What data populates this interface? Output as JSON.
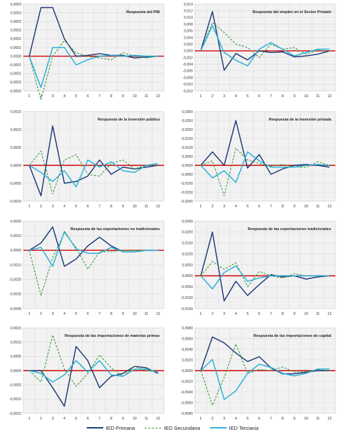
{
  "colors": {
    "primaria": "#1f3a7a",
    "secundaria": "#3a9a3a",
    "terciaria": "#2ab0d8",
    "zero_line": "#d00000",
    "plot_bg": "#f2f2f2",
    "grid": "#d8d8d8"
  },
  "legend": {
    "primaria": "IED Primaria",
    "secundaria": "IED Secundaria",
    "terciaria": "IED Terciaria"
  },
  "chart_data": [
    {
      "type": "line",
      "title": "Respuesta del PIB",
      "x": [
        1,
        2,
        3,
        4,
        5,
        6,
        7,
        8,
        9,
        10,
        11,
        12
      ],
      "ylim": [
        -0.0002,
        0.0003
      ],
      "yticks": [
        -0.0002,
        -0.00015,
        -0.0001,
        -5e-05,
        0,
        5e-05,
        0.0001,
        0.00015,
        0.0002,
        0.00025,
        0.0003
      ],
      "ytick_labels": [
        "-0,0002",
        "-0,0002",
        "-0,0001",
        "-0,0001",
        "0,0000",
        "0,0001",
        "0,0001",
        "0,0002",
        "0,0002",
        "0,0003",
        "0,0003"
      ],
      "series": [
        {
          "name": "IED Primaria",
          "values": [
            0,
            0.00028,
            0.00028,
            0.0001,
            0,
            5e-06,
            1.5e-05,
            5e-06,
            5e-06,
            -1e-05,
            -5e-06,
            0
          ]
        },
        {
          "name": "IED Secundaria",
          "values": [
            0,
            -0.00025,
            0,
            9e-05,
            2e-05,
            0,
            -1e-05,
            -2e-05,
            2e-05,
            0,
            -1e-05,
            0
          ]
        },
        {
          "name": "IED Terciaria",
          "values": [
            0,
            -0.00018,
            5e-05,
            5e-05,
            -5e-05,
            -2e-05,
            0,
            5e-06,
            0,
            5e-06,
            0,
            0
          ]
        }
      ]
    },
    {
      "type": "line",
      "title": "Respuesta del empleo en el Sector Privado",
      "x": [
        1,
        2,
        3,
        4,
        5,
        6,
        7,
        8,
        9,
        10,
        11,
        12
      ],
      "ylim": [
        -0.012,
        0.014
      ],
      "yticks": [
        -0.012,
        -0.01,
        -0.008,
        -0.006,
        -0.004,
        -0.002,
        0,
        0.002,
        0.004,
        0.006,
        0.008,
        0.01,
        0.012,
        0.014
      ],
      "ytick_labels": [
        "-0,012",
        "-0,010",
        "-0,008",
        "-0,006",
        "-0,004",
        "-0,002",
        "0,000",
        "0,002",
        "0,004",
        "0,006",
        "0,008",
        "0,010",
        "0,012",
        "0,014"
      ],
      "series": [
        {
          "name": "IED Primaria",
          "values": [
            0,
            0.0118,
            -0.0058,
            -0.0008,
            -0.0027,
            0,
            -0.0005,
            -0.0003,
            -0.0018,
            -0.0015,
            -0.001,
            0
          ]
        },
        {
          "name": "IED Secundaria",
          "values": [
            0,
            0.0085,
            0.0055,
            0.002,
            0.001,
            -0.002,
            0.002,
            0.0005,
            0.001,
            -0.001,
            0.0002,
            0
          ]
        },
        {
          "name": "IED Terciaria",
          "values": [
            0,
            0.0076,
            -0.0005,
            -0.0028,
            -0.0045,
            0.0005,
            0.0025,
            0.0005,
            -0.0015,
            -0.0005,
            0.0005,
            0.0005
          ]
        }
      ]
    },
    {
      "type": "line",
      "title": "Respuesta de la inversión pública",
      "x": [
        1,
        2,
        3,
        4,
        5,
        6,
        7,
        8,
        9,
        10,
        11,
        12
      ],
      "ylim": [
        -0.001,
        0.0015
      ],
      "yticks": [
        -0.001,
        -0.0005,
        0,
        0.0005,
        0.001,
        0.0015
      ],
      "ytick_labels": [
        "-0,0010",
        "-0,0005",
        "0,0000",
        "0,0005",
        "0,0010",
        "0,0015"
      ],
      "series": [
        {
          "name": "IED Primaria",
          "values": [
            0,
            -0.00085,
            0.0011,
            -0.0005,
            -0.00045,
            -0.0003,
            0.00015,
            -0.00025,
            -5e-05,
            -0.0001,
            -5e-05,
            0
          ]
        },
        {
          "name": "IED Secundaria",
          "values": [
            0,
            0.0004,
            -0.0008,
            0.00015,
            0.0003,
            -0.00025,
            -0.0003,
            5e-05,
            0.00015,
            -0.0001,
            0,
            0
          ]
        },
        {
          "name": "IED Terciaria",
          "values": [
            0,
            -0.0002,
            -0.00045,
            -0.00015,
            -0.0006,
            0.00015,
            -5e-05,
            0.0001,
            -0.00015,
            -0.0002,
            0,
            5e-05
          ]
        }
      ]
    },
    {
      "type": "line",
      "title": "Respuesta de la inversión privada",
      "x": [
        1,
        2,
        3,
        4,
        5,
        6,
        7,
        8,
        9,
        10,
        11,
        12
      ],
      "ylim": [
        -0.02,
        0.03
      ],
      "yticks": [
        -0.02,
        -0.015,
        -0.01,
        -0.005,
        0,
        0.005,
        0.01,
        0.015,
        0.02,
        0.025,
        0.03
      ],
      "ytick_labels": [
        "-0,0200",
        "-0,0150",
        "-0,0100",
        "-0,0050",
        "0,0000",
        "0,0050",
        "0,0100",
        "0,0150",
        "0,0200",
        "0,0250",
        "0,0300"
      ],
      "series": [
        {
          "name": "IED Primaria",
          "values": [
            0,
            0.0075,
            0,
            0.025,
            -0.0015,
            0.006,
            -0.005,
            -0.002,
            0,
            0.0005,
            0,
            -0.001
          ]
        },
        {
          "name": "IED Secundaria",
          "values": [
            0,
            0.0025,
            -0.017,
            0.0095,
            0.003,
            0.001,
            -0.0005,
            0.0005,
            -0.001,
            -0.001,
            0.002,
            0
          ]
        },
        {
          "name": "IED Terciaria",
          "values": [
            0,
            -0.007,
            -0.003,
            -0.0095,
            0.0075,
            0.0025,
            -0.001,
            -0.001,
            -0.001,
            0,
            0.0005,
            0
          ]
        }
      ]
    },
    {
      "type": "line",
      "title": "Respuesta de las exportaciones no tradicionales",
      "x": [
        1,
        2,
        3,
        4,
        5,
        6,
        7,
        8,
        9,
        10,
        11,
        12
      ],
      "ylim": [
        -0.004,
        0.002
      ],
      "yticks": [
        -0.004,
        -0.003,
        -0.002,
        -0.001,
        0,
        0.001,
        0.002
      ],
      "ytick_labels": [
        "-0,0040",
        "-0,0030",
        "-0,0020",
        "-0,0010",
        "0,0000",
        "0,0010",
        "0,0020"
      ],
      "series": [
        {
          "name": "IED Primaria",
          "values": [
            0,
            0.0005,
            0.0016,
            -0.0011,
            -0.0006,
            0.0003,
            0.0009,
            0.0003,
            -0.0001,
            -0.0001,
            0,
            0
          ]
        },
        {
          "name": "IED Secundaria",
          "values": [
            0,
            -0.0031,
            -0.0005,
            0.0012,
            0.0002,
            -0.0013,
            -0.0001,
            -0.0001,
            0,
            0,
            0,
            0
          ]
        },
        {
          "name": "IED Terciaria",
          "values": [
            0,
            0.0002,
            -0.0011,
            0.0013,
            0.0001,
            -0.0002,
            -0.0002,
            0.0002,
            -0.0001,
            -0.0001,
            0,
            0
          ]
        }
      ]
    },
    {
      "type": "line",
      "title": "Respuesta de las exportaciones tradicionales",
      "x": [
        1,
        2,
        3,
        4,
        5,
        6,
        7,
        8,
        9,
        10,
        11,
        12
      ],
      "ylim": [
        -0.015,
        0.025
      ],
      "yticks": [
        -0.015,
        -0.01,
        -0.005,
        0,
        0.005,
        0.01,
        0.015,
        0.02,
        0.025
      ],
      "ytick_labels": [
        "-0,0150",
        "-0,0100",
        "-0,0050",
        "0,0000",
        "0,0050",
        "0,0100",
        "0,0150",
        "0,0200",
        "0,0250"
      ],
      "series": [
        {
          "name": "IED Primaria",
          "values": [
            0,
            0.02,
            -0.0115,
            -0.0025,
            -0.009,
            -0.004,
            0.0005,
            -0.0005,
            0,
            -0.0015,
            -0.0005,
            0
          ]
        },
        {
          "name": "IED Secundaria",
          "values": [
            0,
            0.0065,
            0.003,
            0.006,
            -0.005,
            0.002,
            0,
            -0.001,
            0.001,
            0,
            0,
            0
          ]
        },
        {
          "name": "IED Terciaria",
          "values": [
            0,
            -0.006,
            0.0015,
            0.0045,
            -0.0025,
            -0.001,
            0,
            0,
            0,
            0,
            0,
            0
          ]
        }
      ]
    },
    {
      "type": "line",
      "title": "Respuesta de las importaciones de materias primas",
      "x": [
        1,
        2,
        3,
        4,
        5,
        6,
        7,
        8,
        9,
        10,
        11,
        12
      ],
      "ylim": [
        -0.0015,
        0.0015
      ],
      "yticks": [
        -0.0015,
        -0.001,
        -0.0005,
        0,
        0.0005,
        0.001,
        0.0015
      ],
      "ytick_labels": [
        "-0,0015",
        "-0,0010",
        "-0,0005",
        "0,0000",
        "0,0005",
        "0,0010",
        "0,0015"
      ],
      "series": [
        {
          "name": "IED Primaria",
          "values": [
            0,
            0,
            -0.0006,
            -0.00125,
            0.00085,
            0.00035,
            -0.0006,
            -0.0002,
            -0.0001,
            0.00015,
            0.0001,
            -0.0001
          ]
        },
        {
          "name": "IED Secundaria",
          "values": [
            0,
            -0.0004,
            0.00125,
            5e-05,
            -0.00055,
            -0.0001,
            0.00055,
            0.0001,
            -0.0002,
            0.00015,
            0,
            -5e-05
          ]
        },
        {
          "name": "IED Terciaria",
          "values": [
            0,
            -0.0001,
            -0.0004,
            -0.00015,
            0.00035,
            -5e-05,
            0.00035,
            -0.00015,
            -0.0002,
            5e-05,
            5e-05,
            -5e-05
          ]
        }
      ]
    },
    {
      "type": "line",
      "title": "Respuesta de las importaciones de capital",
      "x": [
        1,
        2,
        3,
        4,
        5,
        6,
        7,
        8,
        9,
        10,
        11,
        12
      ],
      "ylim": [
        -0.008,
        0.008
      ],
      "yticks": [
        -0.008,
        -0.006,
        -0.004,
        -0.002,
        0,
        0.002,
        0.004,
        0.006,
        0.008
      ],
      "ytick_labels": [
        "-0,0080",
        "-0,0060",
        "-0,0040",
        "-0,0020",
        "0,0000",
        "0,0020",
        "0,0040",
        "0,0060",
        "0,0080"
      ],
      "series": [
        {
          "name": "IED Primaria",
          "values": [
            0,
            0.0063,
            0.0052,
            0.0033,
            0.0017,
            0.0026,
            0.0005,
            -0.0006,
            -0.0006,
            -0.0003,
            0,
            0
          ]
        },
        {
          "name": "IED Secundaria",
          "values": [
            0,
            -0.0065,
            -0.0013,
            0.005,
            -0.0005,
            0.0002,
            0,
            0.0007,
            -0.0003,
            -0.0002,
            0.0002,
            0
          ]
        },
        {
          "name": "IED Terciaria",
          "values": [
            0,
            0.0021,
            -0.0054,
            -0.0038,
            -0.0005,
            0.0012,
            0.0006,
            -0.0005,
            -0.001,
            -0.0005,
            0.0003,
            0.0003
          ]
        }
      ]
    }
  ]
}
